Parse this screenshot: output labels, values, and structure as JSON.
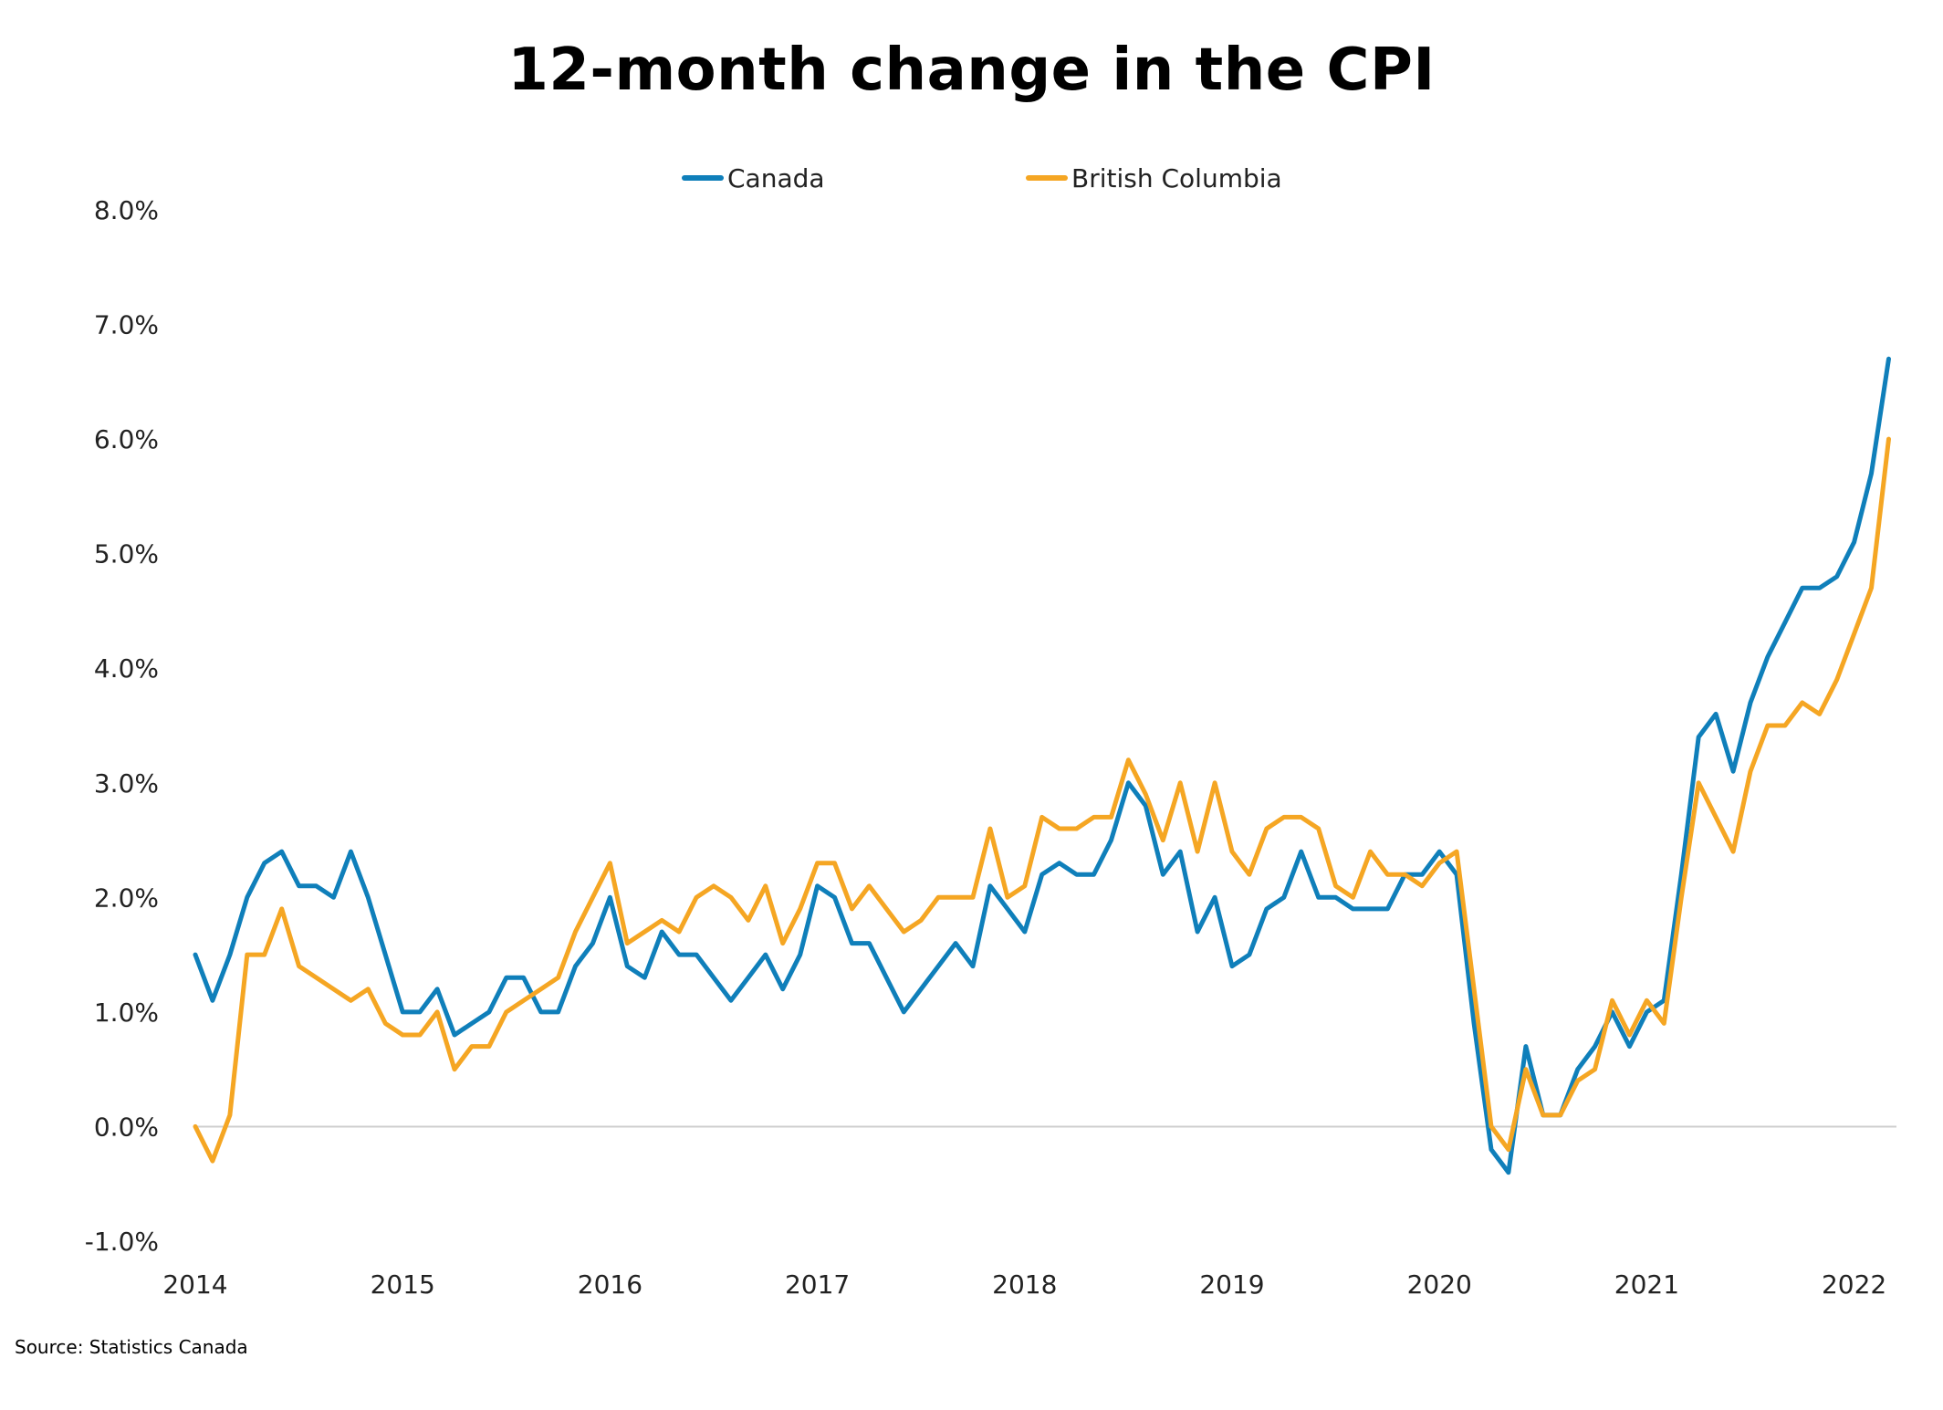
{
  "chart_data": {
    "type": "line",
    "title": "12-month change in the CPI",
    "xlabel": "",
    "ylabel": "",
    "ylim": [
      -1.0,
      8.0
    ],
    "y_ticks": [
      "-1.0%",
      "0.0%",
      "1.0%",
      "2.0%",
      "3.0%",
      "4.0%",
      "5.0%",
      "6.0%",
      "7.0%",
      "8.0%"
    ],
    "y_tick_values": [
      -1,
      0,
      1,
      2,
      3,
      4,
      5,
      6,
      7,
      8
    ],
    "x_ticks": [
      "2014",
      "2015",
      "2016",
      "2017",
      "2018",
      "2019",
      "2020",
      "2021",
      "2022"
    ],
    "x_start": "2014-01",
    "x_end": "2022-03",
    "gridline_zero": true,
    "legend_position": "top",
    "series": [
      {
        "name": "Canada",
        "color": "#0f7fba",
        "values": [
          1.5,
          1.1,
          1.5,
          2.0,
          2.3,
          2.4,
          2.1,
          2.1,
          2.0,
          2.4,
          2.0,
          1.5,
          1.0,
          1.0,
          1.2,
          0.8,
          0.9,
          1.0,
          1.3,
          1.3,
          1.0,
          1.0,
          1.4,
          1.6,
          2.0,
          1.4,
          1.3,
          1.7,
          1.5,
          1.5,
          1.3,
          1.1,
          1.3,
          1.5,
          1.2,
          1.5,
          2.1,
          2.0,
          1.6,
          1.6,
          1.3,
          1.0,
          1.2,
          1.4,
          1.6,
          1.4,
          2.1,
          1.9,
          1.7,
          2.2,
          2.3,
          2.2,
          2.2,
          2.5,
          3.0,
          2.8,
          2.2,
          2.4,
          1.7,
          2.0,
          1.4,
          1.5,
          1.9,
          2.0,
          2.4,
          2.0,
          2.0,
          1.9,
          1.9,
          1.9,
          2.2,
          2.2,
          2.4,
          2.2,
          0.9,
          -0.2,
          -0.4,
          0.7,
          0.1,
          0.1,
          0.5,
          0.7,
          1.0,
          0.7,
          1.0,
          1.1,
          2.2,
          3.4,
          3.6,
          3.1,
          3.7,
          4.1,
          4.4,
          4.7,
          4.7,
          4.8,
          5.1,
          5.7,
          6.7
        ]
      },
      {
        "name": "British Columbia",
        "color": "#f5a623",
        "values": [
          0.0,
          -0.3,
          0.1,
          1.5,
          1.5,
          1.9,
          1.4,
          1.3,
          1.2,
          1.1,
          1.2,
          0.9,
          0.8,
          0.8,
          1.0,
          0.5,
          0.7,
          0.7,
          1.0,
          1.1,
          1.2,
          1.3,
          1.7,
          2.0,
          2.3,
          1.6,
          1.7,
          1.8,
          1.7,
          2.0,
          2.1,
          2.0,
          1.8,
          2.1,
          1.6,
          1.9,
          2.3,
          2.3,
          1.9,
          2.1,
          1.9,
          1.7,
          1.8,
          2.0,
          2.0,
          2.0,
          2.6,
          2.0,
          2.1,
          2.7,
          2.6,
          2.6,
          2.7,
          2.7,
          3.2,
          2.9,
          2.5,
          3.0,
          2.4,
          3.0,
          2.4,
          2.2,
          2.6,
          2.7,
          2.7,
          2.6,
          2.1,
          2.0,
          2.4,
          2.2,
          2.2,
          2.1,
          2.3,
          2.4,
          1.2,
          0.0,
          -0.2,
          0.5,
          0.1,
          0.1,
          0.4,
          0.5,
          1.1,
          0.8,
          1.1,
          0.9,
          2.0,
          3.0,
          2.7,
          2.4,
          3.1,
          3.5,
          3.5,
          3.7,
          3.6,
          3.9,
          4.3,
          4.7,
          6.0
        ]
      }
    ]
  },
  "source": "Source: Statistics Canada"
}
